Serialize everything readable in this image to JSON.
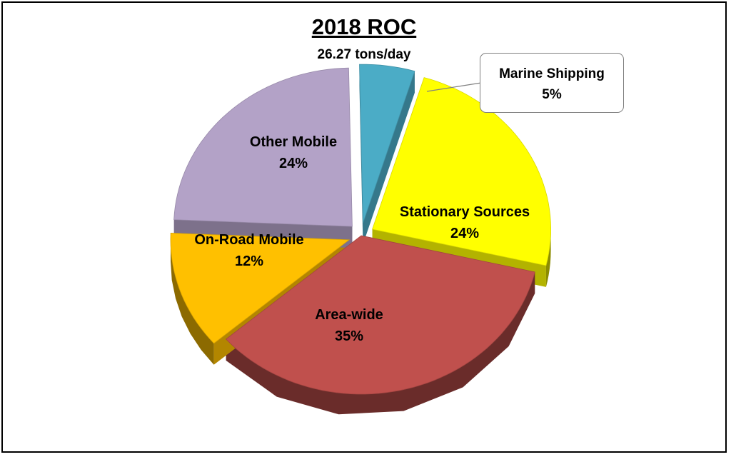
{
  "chart_data": {
    "type": "pie",
    "title": "2018 ROC",
    "subtitle": "26.27 tons/day",
    "slices": [
      {
        "label": "Marine Shipping",
        "value": 5,
        "value_label": "5%",
        "color": "#4BACC6",
        "exploded": true,
        "callout": true
      },
      {
        "label": "Stationary Sources",
        "value": 24,
        "value_label": "24%",
        "color": "#FFFF00",
        "exploded": true
      },
      {
        "label": "Area-wide",
        "value": 35,
        "value_label": "35%",
        "color": "#C0504D",
        "exploded": false
      },
      {
        "label": "On-Road Mobile",
        "value": 12,
        "value_label": "12%",
        "color": "#FFC000",
        "exploded": true
      },
      {
        "label": "Other Mobile",
        "value": 24,
        "value_label": "24%",
        "color": "#B3A2C7",
        "exploded": true
      }
    ],
    "style": "3d-exploded",
    "legend": "none"
  }
}
